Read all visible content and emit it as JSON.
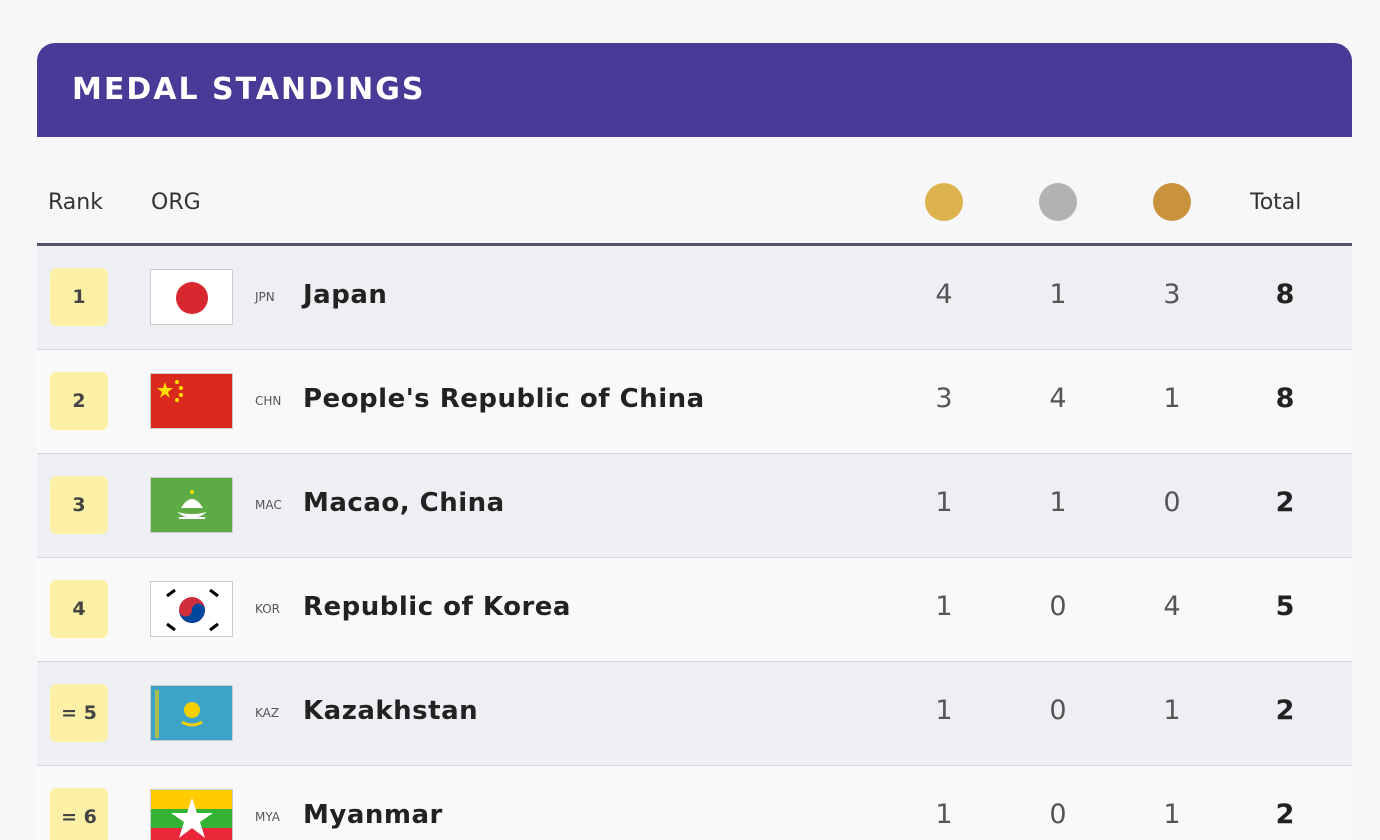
{
  "header": {
    "title": "MEDAL STANDINGS"
  },
  "table": {
    "columns": {
      "rank": "Rank",
      "org": "ORG",
      "total": "Total"
    },
    "rows": [
      {
        "rank": "1",
        "code": "JPN",
        "name": "Japan",
        "gold": 4,
        "silver": 1,
        "bronze": 3,
        "total": 8
      },
      {
        "rank": "2",
        "code": "CHN",
        "name": "People's Republic of China",
        "gold": 3,
        "silver": 4,
        "bronze": 1,
        "total": 8
      },
      {
        "rank": "3",
        "code": "MAC",
        "name": "Macao, China",
        "gold": 1,
        "silver": 1,
        "bronze": 0,
        "total": 2
      },
      {
        "rank": "4",
        "code": "KOR",
        "name": "Republic of Korea",
        "gold": 1,
        "silver": 0,
        "bronze": 4,
        "total": 5
      },
      {
        "rank": "= 5",
        "code": "KAZ",
        "name": "Kazakhstan",
        "gold": 1,
        "silver": 0,
        "bronze": 1,
        "total": 2
      },
      {
        "rank": "= 6",
        "code": "MYA",
        "name": "Myanmar",
        "gold": 1,
        "silver": 0,
        "bronze": 1,
        "total": 2
      }
    ]
  }
}
